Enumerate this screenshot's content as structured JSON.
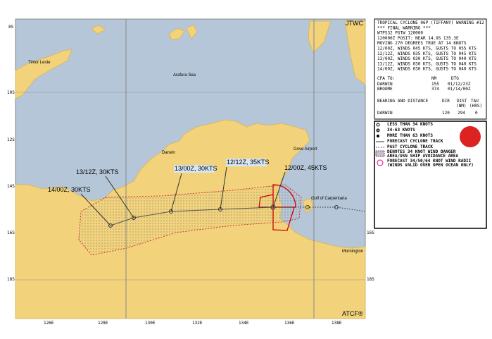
{
  "header": {
    "agency": "JTWC",
    "footer": "ATCF®"
  },
  "map": {
    "lat_labels": [
      "8S",
      "10S",
      "12S",
      "14S",
      "16S",
      "18S"
    ],
    "right_lat_labels": [
      "16S",
      "18S"
    ],
    "lon_labels": [
      "126E",
      "128E",
      "130E",
      "132E",
      "134E",
      "136E",
      "138E"
    ],
    "places": [
      "Timor Leste",
      "Arafura Sea",
      "Darwin",
      "Gove Airport",
      "Golf of Carpentaria",
      "Mornington"
    ],
    "forecast_points": [
      "12/00Z, 45KTS",
      "12/12Z, 35KTS",
      "13/00Z, 30KTS",
      "13/12Z, 30KTS",
      "14/00Z, 30KTS"
    ]
  },
  "info": {
    "lines": [
      "TROPICAL CYCLONE 06P (TIFFANY) WARNING #12",
      "*** FINAL WARNING ***",
      "WTPS32 PGTW 120000",
      "120000Z POSIT: NEAR 14.9S 135.3E",
      "MOVING 270 DEGREES TRUE AT 14 KNOTS",
      "12/00Z, WINDS 045 KTS, GUSTS TO 055 KTS",
      "12/12Z, WINDS 035 KTS, GUSTS TO 045 KTS",
      "13/00Z, WINDS 030 KTS, GUSTS TO 040 KTS",
      "13/12Z, WINDS 030 KTS, GUSTS TO 040 KTS",
      "14/00Z, WINDS 030 KTS, GUSTS TO 040 KTS"
    ],
    "cpa_header": [
      "CPA TO:",
      "NM",
      "DTG"
    ],
    "cpa_rows": [
      [
        "DARWIN",
        "155",
        "01/12/23Z"
      ],
      [
        "BROOME",
        "374",
        "01/14/00Z"
      ]
    ],
    "bearing_header": [
      "BEARING AND DISTANCE",
      "DIR",
      "DIST",
      "TAU",
      "(NM)",
      "(HRS)"
    ],
    "bearing_rows": [
      [
        "DARWIN",
        "120",
        "294",
        "0"
      ]
    ]
  },
  "legend": [
    "LESS THAN 34 KNOTS",
    "34-63 KNOTS",
    "MORE THAN 63 KNOTS",
    "FORECAST CYCLONE TRACK",
    "PAST CYCLONE TRACK",
    "DENOTES 34 KNOT WIND DANGER",
    "AREA/USN SHIP AVOIDANCE AREA",
    "FORECAST 34/50/64 KNOT WIND RADII",
    "(WINDS VALID OVER OPEN OCEAN ONLY)"
  ]
}
